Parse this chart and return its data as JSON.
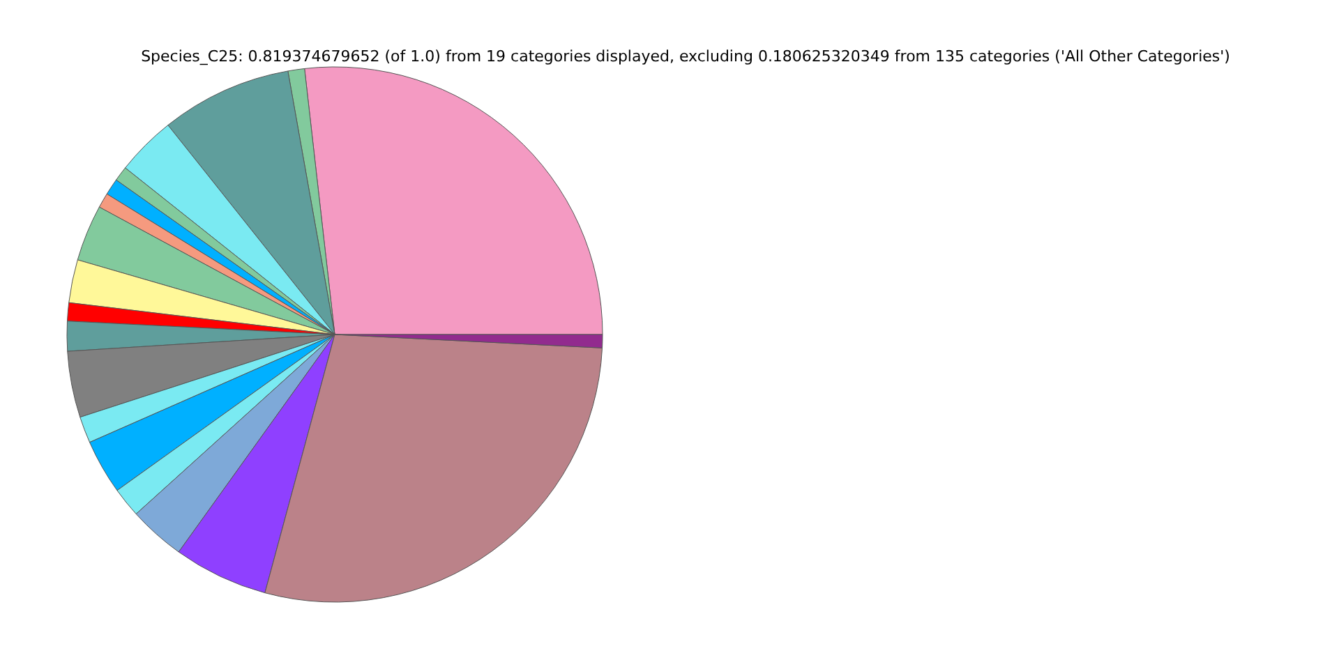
{
  "chart_data": {
    "type": "pie",
    "title": "Species_C25: 0.819374679652 (of 1.0) from 19 categories displayed, excluding 0.180625320349 from 135 categories ('All Other Categories')",
    "categories": [
      null,
      null,
      null,
      null,
      null,
      null,
      null,
      null,
      null,
      null,
      null,
      null,
      null,
      null,
      null,
      null,
      null,
      null,
      null
    ],
    "values": [
      26.8,
      1.0,
      7.9,
      3.6,
      0.9,
      1.0,
      0.9,
      3.4,
      2.6,
      1.1,
      1.8,
      4.0,
      1.6,
      3.3,
      1.8,
      3.4,
      5.7,
      28.4,
      0.8
    ],
    "colors": [
      "#f49ac2",
      "#82ca9d",
      "#5f9e9c",
      "#7aeaf2",
      "#82ca9d",
      "#00b0ff",
      "#f59a7f",
      "#82ca9d",
      "#fff899",
      "#ff0000",
      "#5f9e9c",
      "#808080",
      "#7aeaf2",
      "#00b0ff",
      "#7aeaf2",
      "#7ea9d8",
      "#8f40ff",
      "#bb8289",
      "#922b8e"
    ],
    "legend": false
  }
}
